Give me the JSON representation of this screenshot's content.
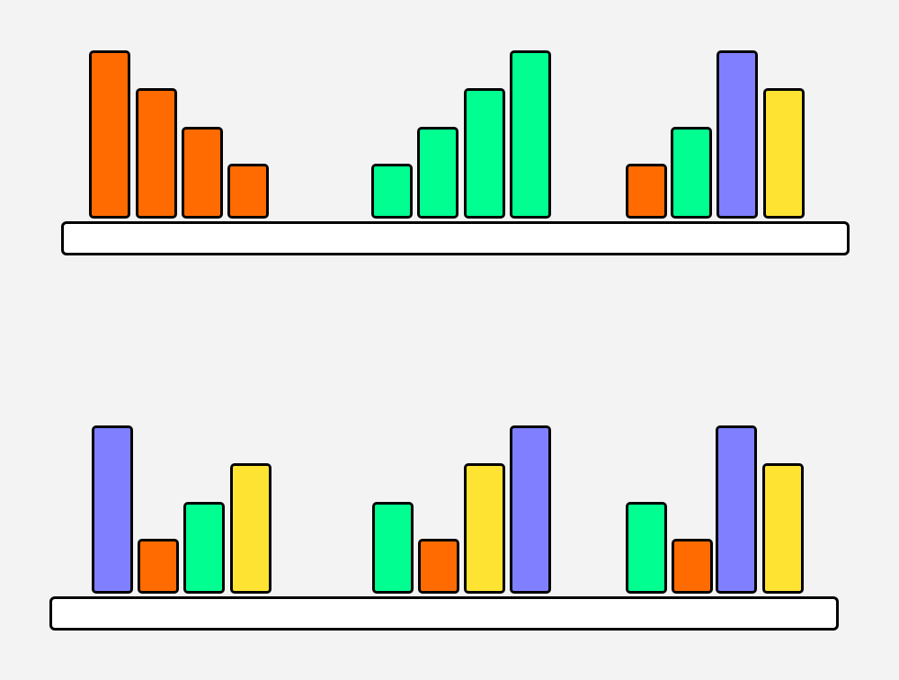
{
  "colors": {
    "orange": "#FF6B00",
    "green": "#00FF90",
    "purple": "#7F7FFF",
    "yellow": "#FFE333",
    "background": "#F3F3F3",
    "shelf": "#FFFFFF",
    "outline": "#000000"
  },
  "max_level": 4,
  "shelves": [
    {
      "groups": [
        {
          "bars": [
            {
              "color": "orange",
              "level": 4
            },
            {
              "color": "orange",
              "level": 3
            },
            {
              "color": "orange",
              "level": 2
            },
            {
              "color": "orange",
              "level": 1
            }
          ]
        },
        {
          "bars": [
            {
              "color": "green",
              "level": 1
            },
            {
              "color": "green",
              "level": 2
            },
            {
              "color": "green",
              "level": 3
            },
            {
              "color": "green",
              "level": 4
            }
          ]
        },
        {
          "bars": [
            {
              "color": "orange",
              "level": 1
            },
            {
              "color": "green",
              "level": 2
            },
            {
              "color": "purple",
              "level": 4
            },
            {
              "color": "yellow",
              "level": 3
            }
          ]
        }
      ]
    },
    {
      "groups": [
        {
          "bars": [
            {
              "color": "purple",
              "level": 4
            },
            {
              "color": "orange",
              "level": 1
            },
            {
              "color": "green",
              "level": 2
            },
            {
              "color": "yellow",
              "level": 3
            }
          ]
        },
        {
          "bars": [
            {
              "color": "green",
              "level": 2
            },
            {
              "color": "orange",
              "level": 1
            },
            {
              "color": "yellow",
              "level": 3
            },
            {
              "color": "purple",
              "level": 4
            }
          ]
        },
        {
          "bars": [
            {
              "color": "green",
              "level": 2
            },
            {
              "color": "orange",
              "level": 1
            },
            {
              "color": "purple",
              "level": 4
            },
            {
              "color": "yellow",
              "level": 3
            }
          ]
        }
      ]
    }
  ]
}
